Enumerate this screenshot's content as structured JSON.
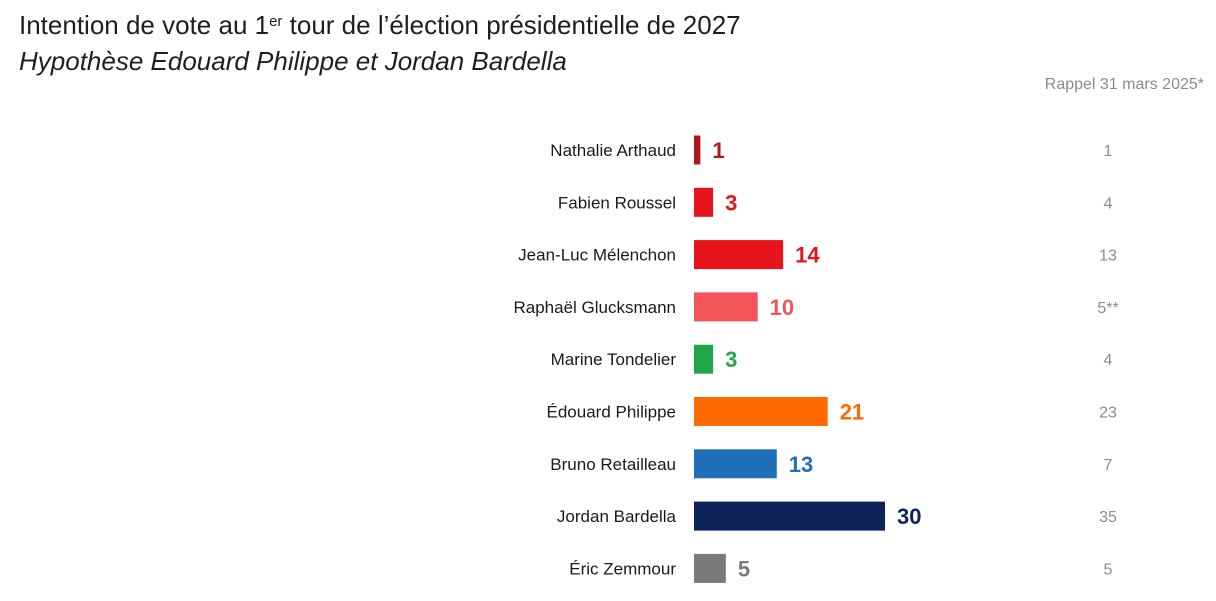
{
  "chart_data": {
    "type": "bar",
    "title": "Intention de vote au 1",
    "title_sup": "er",
    "title_rest": " tour de l’élection présidentielle de 2027",
    "subtitle": "Hypothèse Edouard Philippe et Jordan Bardella",
    "recall_header": "Rappel 31 mars 2025*",
    "categories": [
      "Nathalie Arthaud",
      "Fabien Roussel",
      "Jean-Luc Mélenchon",
      "Raphaël Glucksmann",
      "Marine Tondelier",
      "Édouard Philippe",
      "Bruno Retailleau",
      "Jordan Bardella",
      "Éric Zemmour"
    ],
    "values": [
      1,
      3,
      14,
      10,
      3,
      21,
      13,
      30,
      5
    ],
    "colors": [
      "#b0161e",
      "#e8141b",
      "#e8141b",
      "#f2545a",
      "#22a64a",
      "#ff6a00",
      "#1f70b8",
      "#0c2459",
      "#7a7a7a"
    ],
    "recall_values": [
      "1",
      "4",
      "13",
      "5**",
      "4",
      "23",
      "7",
      "35",
      "5"
    ],
    "orientation": "horizontal",
    "xlim": [
      0,
      30
    ],
    "grid": false,
    "legend": "none"
  }
}
